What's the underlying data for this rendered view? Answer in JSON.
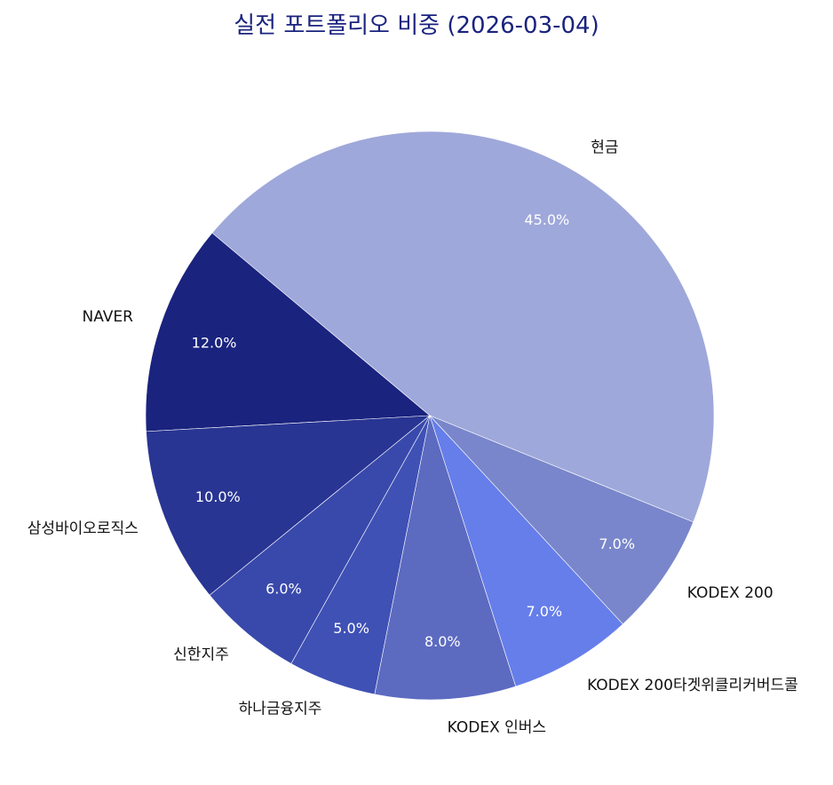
{
  "chart_data": {
    "type": "pie",
    "title": "실전 포트폴리오 비중 (2026-03-04)",
    "start_angle_deg": -22,
    "direction": "counterclockwise",
    "categories": [
      "현금",
      "NAVER",
      "삼성바이오로직스",
      "신한지주",
      "하나금융지주",
      "KODEX 인버스",
      "KODEX 200타겟위클리커버드콜",
      "KODEX 200"
    ],
    "values": [
      45.0,
      12.0,
      10.0,
      6.0,
      5.0,
      8.0,
      7.0,
      7.0
    ],
    "value_labels": [
      "45.0%",
      "12.0%",
      "10.0%",
      "6.0%",
      "5.0%",
      "8.0%",
      "7.0%",
      "7.0%"
    ],
    "colors": [
      "#9fa8da",
      "#1a237e",
      "#283593",
      "#3949ab",
      "#3f51b5",
      "#5c6bc0",
      "#667eea",
      "#7986cb"
    ],
    "legend": "none"
  }
}
